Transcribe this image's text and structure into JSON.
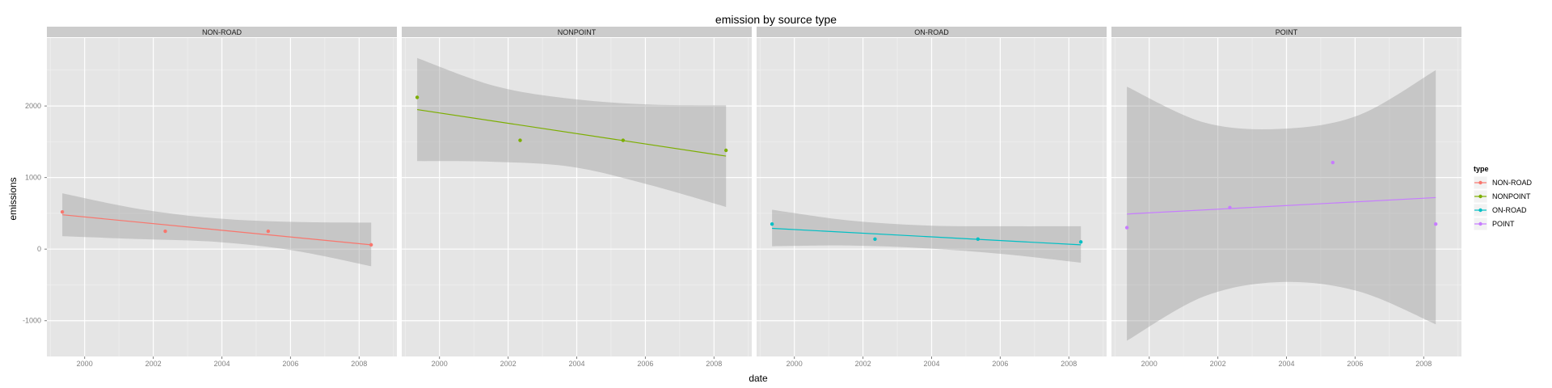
{
  "chart_data": {
    "type": "scatter",
    "title": "emission by source type",
    "xlabel": "date",
    "ylabel": "emissions",
    "xlim": [
      1998.9,
      2009.1
    ],
    "ylim": [
      -1500,
      2950
    ],
    "x_ticks": [
      2000,
      2002,
      2004,
      2006,
      2008
    ],
    "y_ticks": [
      -1000,
      0,
      1000,
      2000
    ],
    "grid": true,
    "facet_by": "type",
    "legend_title": "type",
    "legend_position": "right",
    "series": [
      {
        "name": "NON-ROAD",
        "color": "#F8766D",
        "x": [
          1999.35,
          2002.35,
          2005.35,
          2008.35
        ],
        "y": [
          520,
          250,
          250,
          60
        ],
        "fit": {
          "x": [
            1999.35,
            2008.35
          ],
          "y": [
            480,
            60
          ]
        },
        "band": {
          "upper": [
            780,
            560,
            430,
            380,
            370
          ],
          "lower": [
            180,
            140,
            100,
            -20,
            -240
          ]
        }
      },
      {
        "name": "NONPOINT",
        "color": "#7CAE00",
        "x": [
          1999.35,
          2002.35,
          2005.35,
          2008.35
        ],
        "y": [
          2120,
          1520,
          1520,
          1380
        ],
        "fit": {
          "x": [
            1999.35,
            2008.35
          ],
          "y": [
            1950,
            1300
          ]
        },
        "band": {
          "upper": [
            2670,
            2280,
            2100,
            2020,
            2010
          ],
          "lower": [
            1230,
            1220,
            1150,
            900,
            590
          ]
        }
      },
      {
        "name": "ON-ROAD",
        "color": "#00BFC4",
        "x": [
          1999.35,
          2002.35,
          2005.35,
          2008.35
        ],
        "y": [
          350,
          140,
          140,
          100
        ],
        "fit": {
          "x": [
            1999.35,
            2008.35
          ],
          "y": [
            290,
            60
          ]
        },
        "band": {
          "upper": [
            550,
            400,
            330,
            320,
            320
          ],
          "lower": [
            40,
            50,
            10,
            -70,
            -190
          ]
        }
      },
      {
        "name": "POINT",
        "color": "#C77CFF",
        "x": [
          1999.35,
          2002.35,
          2005.35,
          2008.35
        ],
        "y": [
          300,
          580,
          1210,
          350
        ],
        "fit": {
          "x": [
            1999.35,
            2008.35
          ],
          "y": [
            490,
            720
          ]
        },
        "band": {
          "upper": [
            2270,
            1770,
            1680,
            1870,
            2500
          ],
          "lower": [
            -1280,
            -660,
            -460,
            -590,
            -1050
          ]
        }
      }
    ]
  }
}
